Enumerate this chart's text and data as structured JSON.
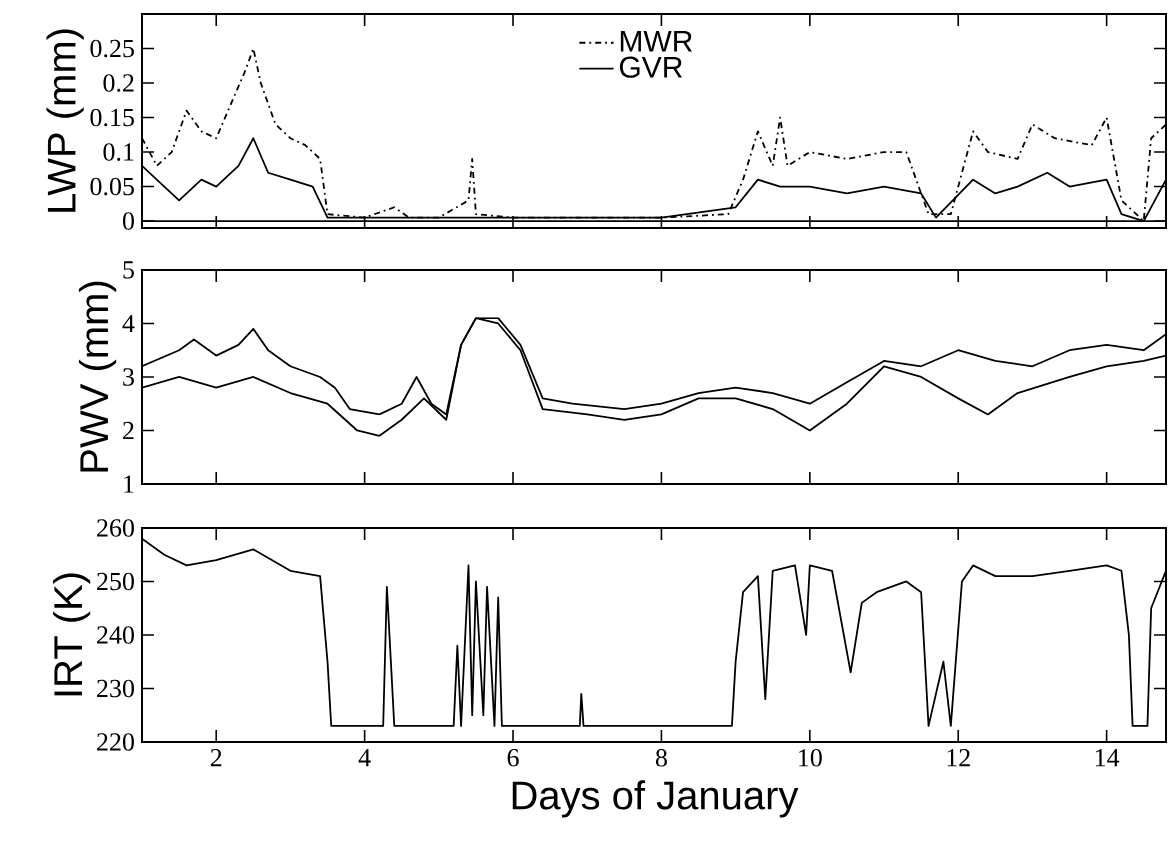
{
  "chart_data": [
    {
      "type": "line",
      "ylabel": "LWP (mm)",
      "xlim": [
        1,
        14.8
      ],
      "xticks": [
        2,
        4,
        6,
        8,
        10,
        12,
        14
      ],
      "ylim": [
        -0.01,
        0.3
      ],
      "yticks": [
        0,
        0.05,
        0.1,
        0.15,
        0.2,
        0.25
      ],
      "tick_labels": "y",
      "legend": "top",
      "marker": "none",
      "ref_lines": [
        {
          "axis": "y",
          "value": 0
        }
      ],
      "series": [
        {
          "name": "MWR",
          "color": "#000000",
          "line_style": "dashdot",
          "x": [
            1.0,
            1.2,
            1.4,
            1.6,
            1.8,
            2.0,
            2.2,
            2.4,
            2.5,
            2.6,
            2.8,
            3.0,
            3.2,
            3.4,
            3.5,
            4.0,
            4.4,
            4.6,
            5.0,
            5.4,
            5.45,
            5.5,
            6.0,
            7.0,
            8.0,
            8.9,
            9.1,
            9.3,
            9.5,
            9.6,
            9.7,
            10.0,
            10.5,
            11.0,
            11.3,
            11.6,
            11.9,
            12.2,
            12.4,
            12.8,
            13.0,
            13.3,
            13.8,
            14.0,
            14.2,
            14.5,
            14.6,
            14.8
          ],
          "values": [
            0.12,
            0.08,
            0.1,
            0.16,
            0.13,
            0.12,
            0.17,
            0.22,
            0.25,
            0.2,
            0.14,
            0.12,
            0.11,
            0.09,
            0.01,
            0.005,
            0.02,
            0.005,
            0.005,
            0.03,
            0.09,
            0.01,
            0.005,
            0.005,
            0.005,
            0.01,
            0.06,
            0.13,
            0.08,
            0.15,
            0.08,
            0.1,
            0.09,
            0.1,
            0.1,
            0.01,
            0.01,
            0.13,
            0.1,
            0.09,
            0.14,
            0.12,
            0.11,
            0.15,
            0.03,
            0.0,
            0.12,
            0.14
          ]
        },
        {
          "name": "GVR",
          "color": "#000000",
          "line_style": "solid",
          "x": [
            1.0,
            1.3,
            1.5,
            1.8,
            2.0,
            2.3,
            2.5,
            2.7,
            3.0,
            3.3,
            3.5,
            4.0,
            5.0,
            6.0,
            7.0,
            8.0,
            9.0,
            9.3,
            9.6,
            10.0,
            10.5,
            11.0,
            11.5,
            11.7,
            12.2,
            12.5,
            12.8,
            13.2,
            13.5,
            14.0,
            14.2,
            14.5,
            14.8
          ],
          "values": [
            0.08,
            0.05,
            0.03,
            0.06,
            0.05,
            0.08,
            0.12,
            0.07,
            0.06,
            0.05,
            0.005,
            0.005,
            0.005,
            0.005,
            0.005,
            0.005,
            0.02,
            0.06,
            0.05,
            0.05,
            0.04,
            0.05,
            0.04,
            0.005,
            0.06,
            0.04,
            0.05,
            0.07,
            0.05,
            0.06,
            0.01,
            0.0,
            0.06
          ]
        }
      ]
    },
    {
      "type": "line",
      "ylabel": "PWV (mm)",
      "xlim": [
        1,
        14.8
      ],
      "xticks": [
        2,
        4,
        6,
        8,
        10,
        12,
        14
      ],
      "ylim": [
        1,
        5
      ],
      "yticks": [
        1,
        2,
        3,
        4,
        5
      ],
      "tick_labels": "y",
      "marker": "none",
      "series": [
        {
          "color": "#000000",
          "line_style": "solid",
          "x": [
            1.0,
            1.5,
            1.7,
            2.0,
            2.3,
            2.5,
            2.7,
            3.0,
            3.4,
            3.6,
            3.8,
            4.2,
            4.5,
            4.7,
            4.9,
            5.1,
            5.3,
            5.5,
            5.8,
            6.1,
            6.4,
            6.8,
            7.5,
            8.0,
            8.5,
            9.0,
            9.5,
            10.0,
            10.5,
            11.0,
            11.5,
            12.0,
            12.5,
            13.0,
            13.5,
            14.0,
            14.5,
            14.8
          ],
          "values": [
            3.2,
            3.5,
            3.7,
            3.4,
            3.6,
            3.9,
            3.5,
            3.2,
            3.0,
            2.8,
            2.4,
            2.3,
            2.5,
            3.0,
            2.5,
            2.3,
            3.6,
            4.1,
            4.1,
            3.6,
            2.6,
            2.5,
            2.4,
            2.5,
            2.7,
            2.8,
            2.7,
            2.5,
            2.9,
            3.3,
            3.2,
            3.5,
            3.3,
            3.2,
            3.5,
            3.6,
            3.5,
            3.8
          ]
        },
        {
          "color": "#000000",
          "line_style": "solid",
          "x": [
            1.0,
            1.5,
            2.0,
            2.5,
            3.0,
            3.5,
            3.9,
            4.2,
            4.5,
            4.8,
            5.1,
            5.3,
            5.5,
            5.8,
            6.1,
            6.4,
            7.0,
            7.5,
            8.0,
            8.5,
            9.0,
            9.5,
            10.0,
            10.5,
            11.0,
            11.5,
            12.0,
            12.4,
            12.8,
            13.5,
            14.0,
            14.5,
            14.8
          ],
          "values": [
            2.8,
            3.0,
            2.8,
            3.0,
            2.7,
            2.5,
            2.0,
            1.9,
            2.2,
            2.6,
            2.2,
            3.6,
            4.1,
            4.0,
            3.5,
            2.4,
            2.3,
            2.2,
            2.3,
            2.6,
            2.6,
            2.4,
            2.0,
            2.5,
            3.2,
            3.0,
            2.6,
            2.3,
            2.7,
            3.0,
            3.2,
            3.3,
            3.4
          ]
        }
      ]
    },
    {
      "type": "line",
      "ylabel": "IRT (K)",
      "xlabel": "Days of January",
      "xlim": [
        1,
        14.8
      ],
      "xticks": [
        2,
        4,
        6,
        8,
        10,
        12,
        14
      ],
      "ylim": [
        220,
        260
      ],
      "yticks": [
        220,
        230,
        240,
        250,
        260
      ],
      "marker": "none",
      "series": [
        {
          "color": "#000000",
          "line_style": "solid",
          "x": [
            1.0,
            1.3,
            1.6,
            2.0,
            2.5,
            3.0,
            3.4,
            3.5,
            3.55,
            4.25,
            4.3,
            4.4,
            5.2,
            5.25,
            5.3,
            5.4,
            5.45,
            5.5,
            5.6,
            5.65,
            5.75,
            5.8,
            5.85,
            6.9,
            6.92,
            6.95,
            8.95,
            9.0,
            9.1,
            9.3,
            9.4,
            9.5,
            9.8,
            9.95,
            10.0,
            10.3,
            10.55,
            10.7,
            10.9,
            11.3,
            11.5,
            11.6,
            11.8,
            11.9,
            12.05,
            12.2,
            12.5,
            13.0,
            13.5,
            14.0,
            14.2,
            14.3,
            14.35,
            14.55,
            14.6,
            14.8
          ],
          "values": [
            258,
            255,
            253,
            254,
            256,
            252,
            251,
            235,
            223,
            223,
            249,
            223,
            223,
            238,
            223,
            253,
            225,
            250,
            225,
            249,
            223,
            247,
            223,
            223,
            229,
            223,
            223,
            235,
            248,
            251,
            228,
            252,
            253,
            240,
            253,
            252,
            233,
            246,
            248,
            250,
            248,
            223,
            235,
            223,
            250,
            253,
            251,
            251,
            252,
            253,
            252,
            240,
            223,
            223,
            245,
            252
          ]
        }
      ]
    }
  ]
}
